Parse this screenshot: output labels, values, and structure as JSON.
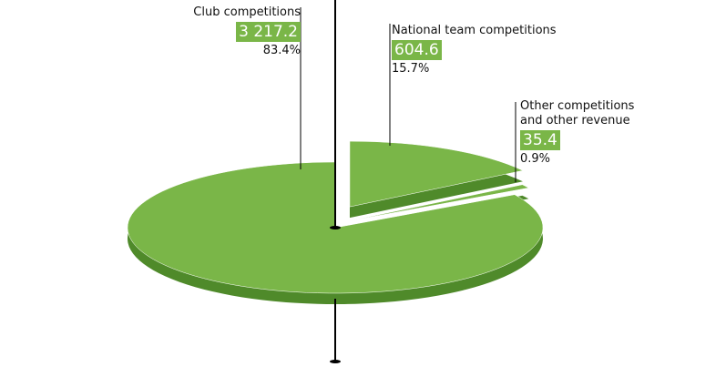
{
  "chart_data": {
    "type": "pie",
    "categories": [
      "Club competitions",
      "National team competitions",
      "Other competitions and other revenue"
    ],
    "values": [
      3217.2,
      604.6,
      35.4
    ],
    "value_labels": [
      "3 217.2",
      "604.6",
      "35.4"
    ],
    "shares": [
      83.4,
      15.7,
      0.9
    ],
    "share_labels": [
      "83.4%",
      "15.7%",
      "0.9%"
    ],
    "color": "#7ab648"
  }
}
